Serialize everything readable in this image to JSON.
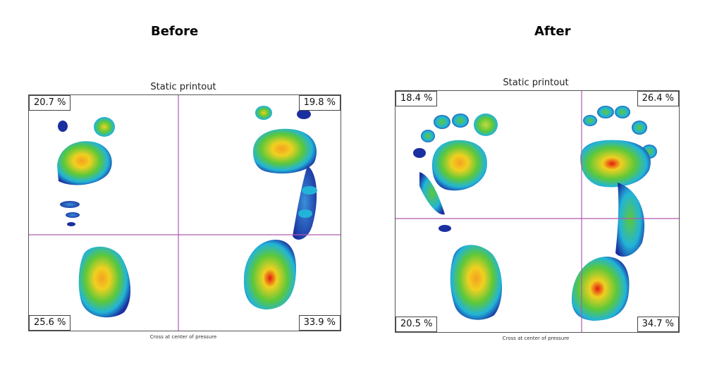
{
  "before": {
    "heading": "Before",
    "printout_title": "Static printout",
    "quadrants": {
      "top_left": "20.7 %",
      "top_right": "19.8 %",
      "bottom_left": "25.6 %",
      "bottom_right": "33.9 %"
    },
    "caption": "Cross at center of pressure"
  },
  "after": {
    "heading": "After",
    "printout_title": "Static printout",
    "quadrants": {
      "top_left": "18.4 %",
      "top_right": "26.4 %",
      "bottom_left": "20.5 %",
      "bottom_right": "34.7 %"
    },
    "caption": "Cross at center of pressure"
  },
  "colors": {
    "crosshair": "#b05ab0",
    "pressure_low": "#1a2fa0",
    "pressure_mid": "#22b4d8",
    "pressure_green": "#5cc83a",
    "pressure_yellow": "#f0d020",
    "pressure_high": "#e41a10"
  }
}
